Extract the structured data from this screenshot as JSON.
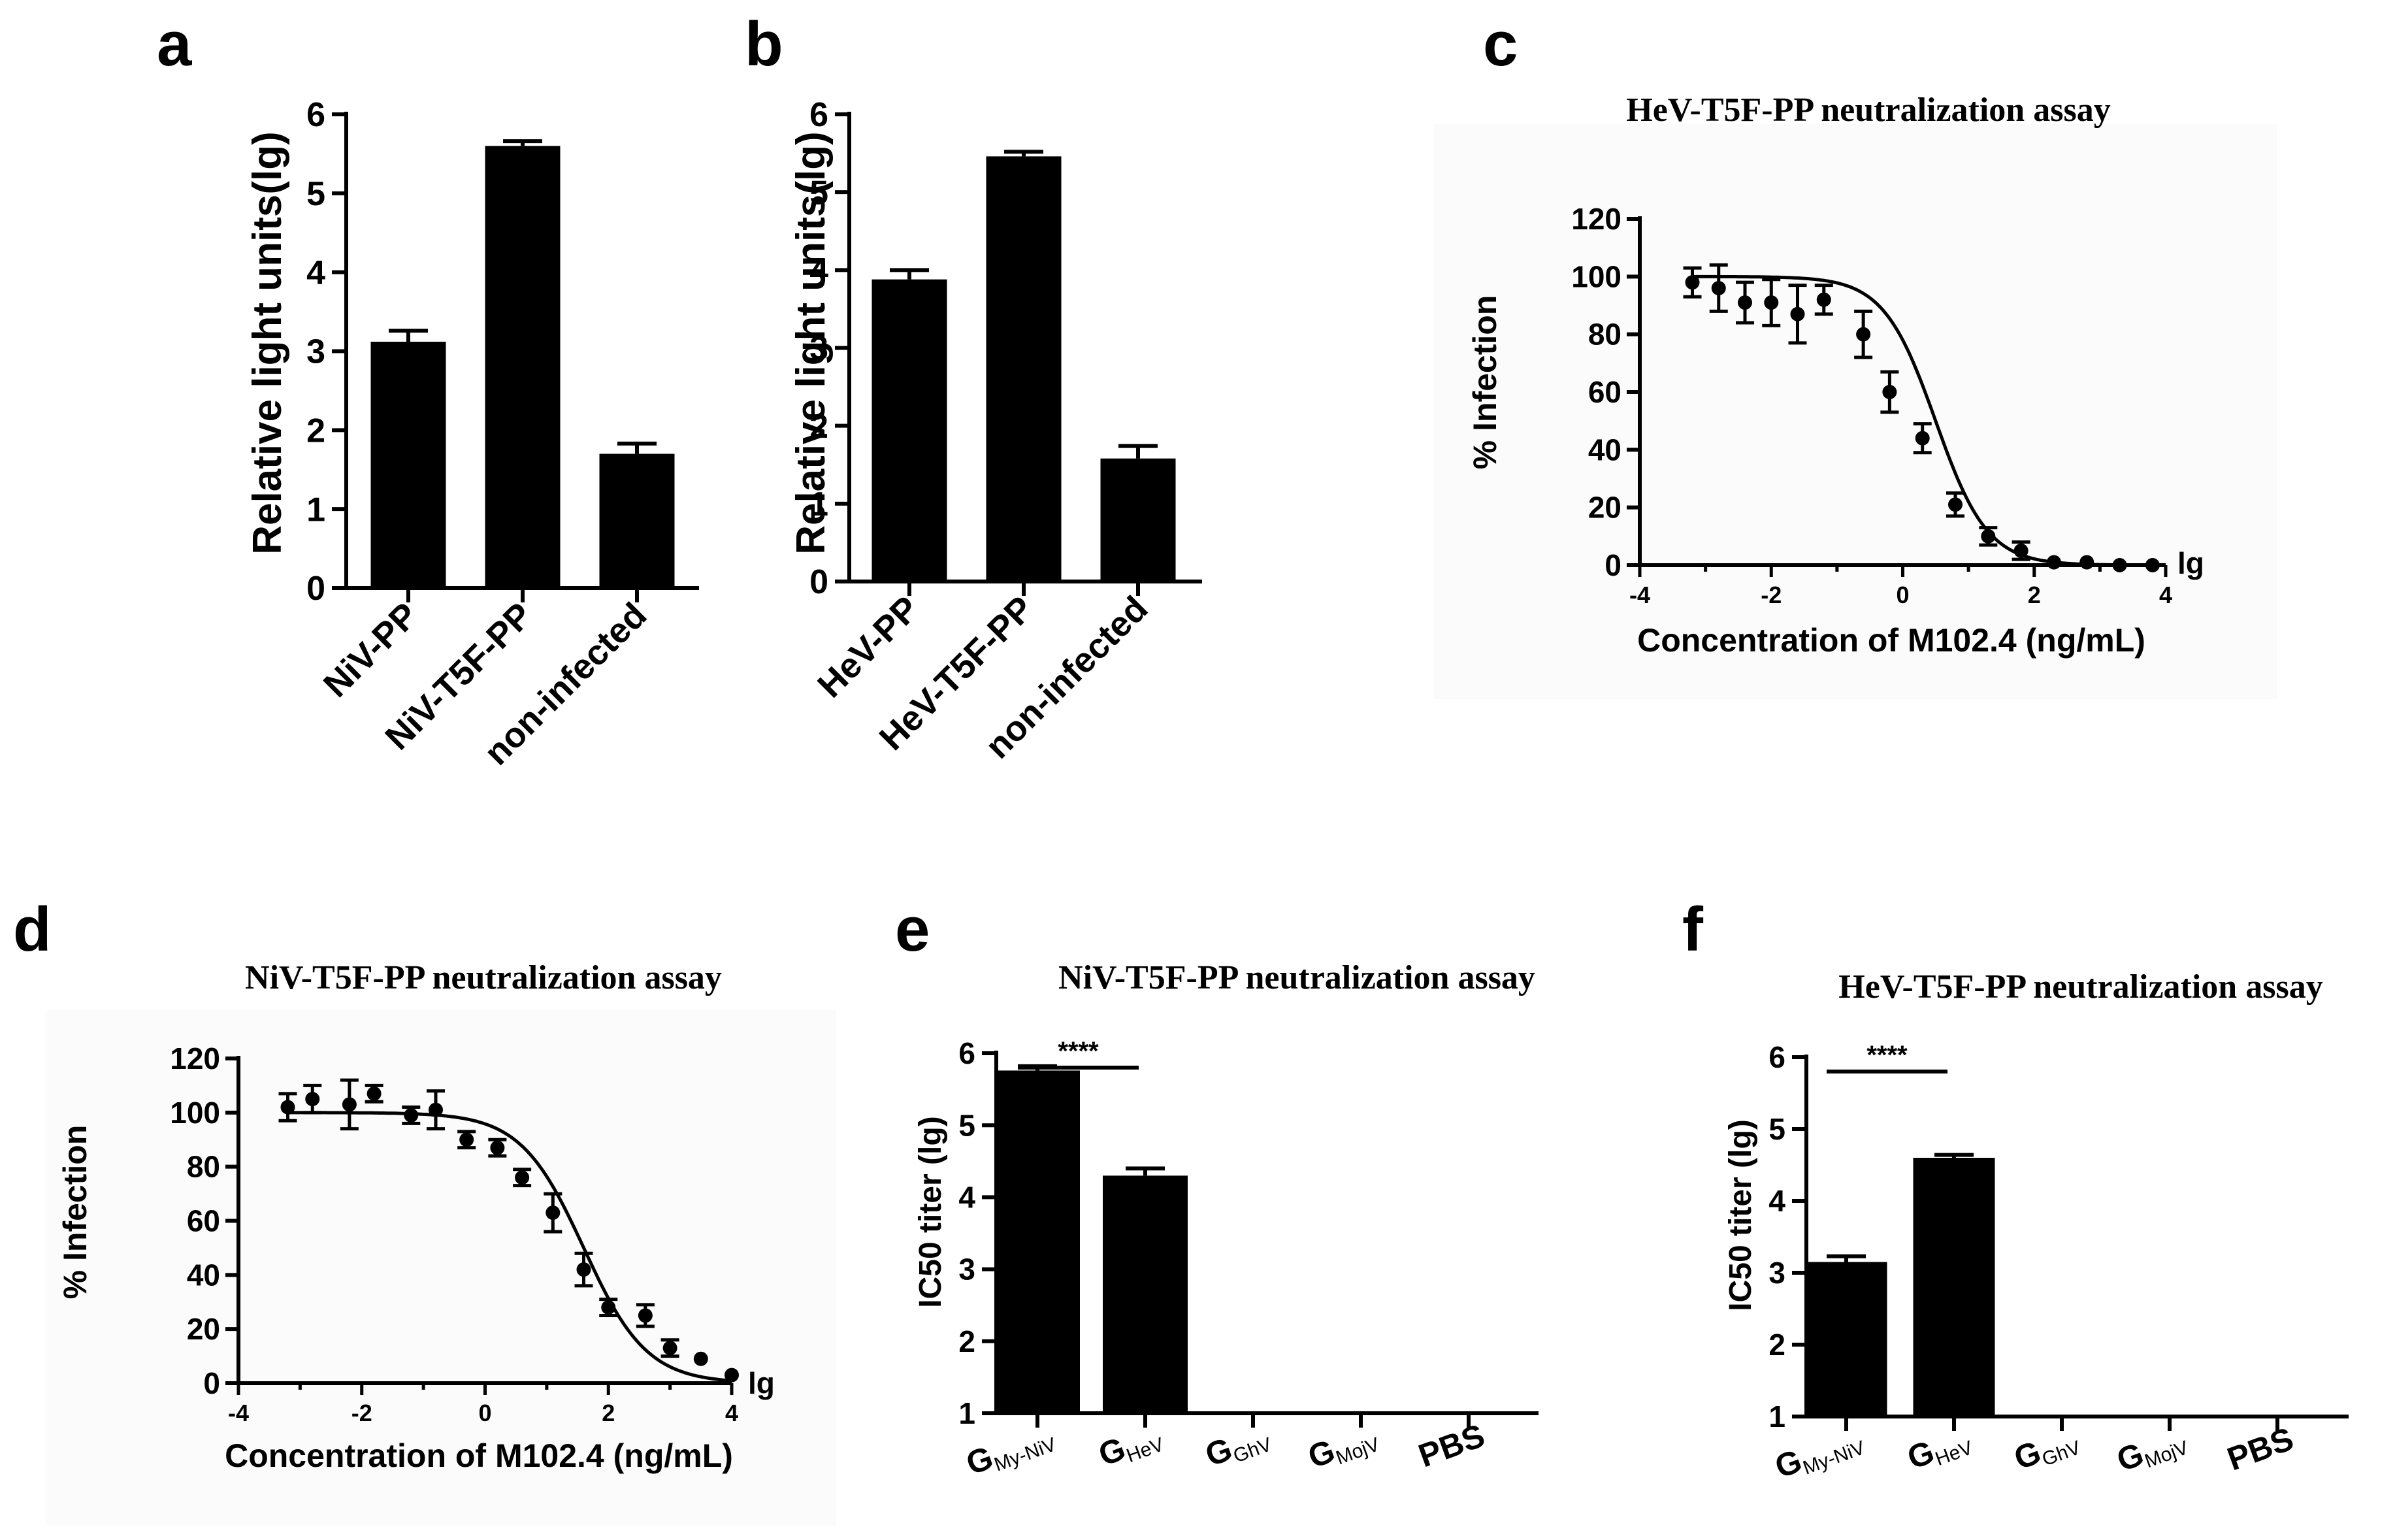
{
  "panels": [
    {
      "id": "a",
      "letter": "a"
    },
    {
      "id": "b",
      "letter": "b"
    },
    {
      "id": "c",
      "letter": "c"
    },
    {
      "id": "d",
      "letter": "d"
    },
    {
      "id": "e",
      "letter": "e"
    },
    {
      "id": "f",
      "letter": "f"
    }
  ],
  "colors": {
    "bar": "#000000",
    "background": "#ffffff",
    "plot_shade": "#fafafa"
  },
  "chart_data": [
    {
      "panel": "a",
      "type": "bar",
      "title": "",
      "ylabel": "Relative light units(lg)",
      "xlabel": "",
      "categories": [
        "NiV-PP",
        "NiV-T5F-PP",
        "non-infected"
      ],
      "values": [
        3.12,
        5.6,
        1.7
      ],
      "errors": [
        0.14,
        0.06,
        0.13
      ],
      "ylim": [
        0,
        6
      ],
      "yticks": [
        "0",
        "1",
        "2",
        "3",
        "4",
        "5",
        "6"
      ]
    },
    {
      "panel": "b",
      "type": "bar",
      "title": "",
      "ylabel": "Relative light units(lg)",
      "xlabel": "",
      "categories": [
        "HeV-PP",
        "HeV-T5F-PP",
        "non-infected"
      ],
      "values": [
        3.88,
        5.46,
        1.58
      ],
      "errors": [
        0.12,
        0.06,
        0.16
      ],
      "ylim": [
        0,
        6
      ],
      "yticks": [
        "0",
        "1",
        "2",
        "3",
        "4",
        "5",
        "6"
      ]
    },
    {
      "panel": "c",
      "type": "scatter",
      "title": "HeV-T5F-PP neutralization assay",
      "xlabel": "Concentration of M102.4 (ng/mL)",
      "ylabel": "% Infection",
      "x_unit": "lg",
      "xlim": [
        -4,
        4
      ],
      "ylim": [
        0,
        120
      ],
      "xticks": [
        "-4",
        "-2",
        "0",
        "2",
        "4"
      ],
      "yticks": [
        "0",
        "20",
        "40",
        "60",
        "80",
        "100",
        "120"
      ],
      "points": [
        {
          "x": -3.2,
          "y": 98,
          "err": 5
        },
        {
          "x": -2.8,
          "y": 96,
          "err": 8
        },
        {
          "x": -2.4,
          "y": 91,
          "err": 7
        },
        {
          "x": -2.0,
          "y": 91,
          "err": 8
        },
        {
          "x": -1.6,
          "y": 87,
          "err": 10
        },
        {
          "x": -1.2,
          "y": 92,
          "err": 5
        },
        {
          "x": -0.6,
          "y": 80,
          "err": 8
        },
        {
          "x": -0.2,
          "y": 60,
          "err": 7
        },
        {
          "x": 0.3,
          "y": 44,
          "err": 5
        },
        {
          "x": 0.8,
          "y": 21,
          "err": 4
        },
        {
          "x": 1.3,
          "y": 10,
          "err": 3
        },
        {
          "x": 1.8,
          "y": 5,
          "err": 3
        },
        {
          "x": 2.3,
          "y": 1,
          "err": 1
        },
        {
          "x": 2.8,
          "y": 1,
          "err": 1
        },
        {
          "x": 3.3,
          "y": 0,
          "err": 1
        },
        {
          "x": 3.8,
          "y": 0,
          "err": 1
        }
      ],
      "fit": {
        "top": 100,
        "bottom": 0,
        "logIC50": 0.5,
        "hill": 1.1
      }
    },
    {
      "panel": "d",
      "type": "scatter",
      "title": "NiV-T5F-PP neutralization assay",
      "xlabel": "Concentration of M102.4 (ng/mL)",
      "ylabel": "% Infection",
      "x_unit": "lg",
      "xlim": [
        -4,
        4
      ],
      "ylim": [
        0,
        120
      ],
      "xticks": [
        "-4",
        "-2",
        "0",
        "2",
        "4"
      ],
      "yticks": [
        "0",
        "20",
        "40",
        "60",
        "80",
        "100",
        "120"
      ],
      "points": [
        {
          "x": -3.2,
          "y": 102,
          "err": 5
        },
        {
          "x": -2.8,
          "y": 105,
          "err": 5
        },
        {
          "x": -2.2,
          "y": 103,
          "err": 9
        },
        {
          "x": -1.8,
          "y": 107,
          "err": 3
        },
        {
          "x": -1.2,
          "y": 99,
          "err": 3
        },
        {
          "x": -0.8,
          "y": 101,
          "err": 7
        },
        {
          "x": -0.3,
          "y": 90,
          "err": 3
        },
        {
          "x": 0.2,
          "y": 87,
          "err": 3
        },
        {
          "x": 0.6,
          "y": 76,
          "err": 3
        },
        {
          "x": 1.1,
          "y": 63,
          "err": 7
        },
        {
          "x": 1.6,
          "y": 42,
          "err": 6
        },
        {
          "x": 2.0,
          "y": 28,
          "err": 3
        },
        {
          "x": 2.6,
          "y": 25,
          "err": 4
        },
        {
          "x": 3.0,
          "y": 13,
          "err": 3
        },
        {
          "x": 3.5,
          "y": 9,
          "err": 1
        },
        {
          "x": 4.0,
          "y": 3,
          "err": 1
        }
      ],
      "fit": {
        "top": 100,
        "bottom": 0,
        "logIC50": 1.6,
        "hill": 0.85
      }
    },
    {
      "panel": "e",
      "type": "bar",
      "title": "NiV-T5F-PP neutralization assay",
      "ylabel": "IC50 titer (lg)",
      "xlabel": "",
      "categories": [
        {
          "main": "G",
          "sub": "My-NiV"
        },
        {
          "main": "G",
          "sub": "HeV"
        },
        {
          "main": "G",
          "sub": "GhV"
        },
        {
          "main": "G",
          "sub": "MojV"
        },
        {
          "main": "PBS",
          "sub": ""
        }
      ],
      "values": [
        5.76,
        4.3,
        1,
        1,
        1
      ],
      "errors": [
        0.06,
        0.1,
        0,
        0,
        0
      ],
      "ylim": [
        1,
        6
      ],
      "yticks": [
        "1",
        "2",
        "3",
        "4",
        "5",
        "6"
      ],
      "significance": {
        "label": "****",
        "between": [
          0,
          1
        ]
      }
    },
    {
      "panel": "f",
      "type": "bar",
      "title": "HeV-T5F-PP neutralization assay",
      "ylabel": "IC50 titer (lg)",
      "xlabel": "",
      "categories": [
        {
          "main": "G",
          "sub": "My-NiV"
        },
        {
          "main": "G",
          "sub": "HeV"
        },
        {
          "main": "G",
          "sub": "GhV"
        },
        {
          "main": "G",
          "sub": "MojV"
        },
        {
          "main": "PBS",
          "sub": ""
        }
      ],
      "values": [
        3.15,
        4.6,
        1,
        1,
        1
      ],
      "errors": [
        0.08,
        0.04,
        0,
        0,
        0
      ],
      "ylim": [
        1,
        6
      ],
      "yticks": [
        "1",
        "2",
        "3",
        "4",
        "5",
        "6"
      ],
      "significance": {
        "label": "****",
        "between": [
          0,
          1
        ]
      }
    }
  ]
}
